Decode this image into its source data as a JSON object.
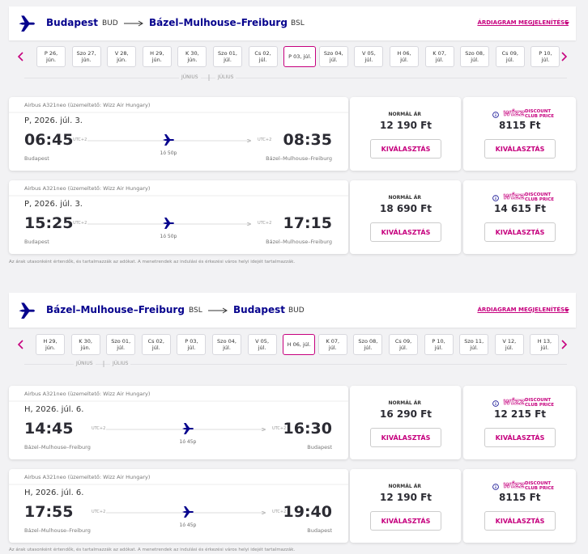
{
  "sections": [
    {
      "header": {
        "from": "Budapest",
        "from_code": "BUD",
        "to": "Bázel–Mulhouse–Freiburg",
        "to_code": "BSL",
        "chart_link": "ÁRDIAGRAM MEGJELENÍTÉSE"
      },
      "dates": [
        {
          "label": "P 26, jún."
        },
        {
          "label": "Szo 27, jún."
        },
        {
          "label": "V 28, jún."
        },
        {
          "label": "H 29, jún."
        },
        {
          "label": "K 30, jún."
        },
        {
          "label": "Szo 01, júl."
        },
        {
          "label": "Cs 02, júl."
        },
        {
          "label": "P 03, júl.",
          "selected": true
        },
        {
          "label": "Szo 04, júl."
        },
        {
          "label": "V 05, júl."
        },
        {
          "label": "H 06, júl."
        },
        {
          "label": "K 07, júl."
        },
        {
          "label": "Szo 08, júl."
        },
        {
          "label": "Cs 09, júl."
        },
        {
          "label": "P 10, júl."
        }
      ],
      "months": [
        "JÚNIUS",
        "JÚLIUS"
      ],
      "flights": [
        {
          "operator": "Airbus A321neo (üzemeltető: Wizz Air Hungary)",
          "date": "P, 2026. júl. 3.",
          "departure": "06:45",
          "departure_tz": "UTC+2",
          "arrival": "08:35",
          "arrival_tz": "UTC+2",
          "duration": "1ó 50p",
          "origin": "Budapest",
          "destination": "Bázel–Mulhouse–Freiburg",
          "fare_label": "NORMÁL ÁR",
          "fare": "12 190 Ft",
          "club_brand": "wizz",
          "club_label": [
            "DISCOUNT",
            "CLUB PRICE"
          ],
          "club_fare": "8115 Ft",
          "select": "KIVÁLASZTÁS"
        },
        {
          "operator": "Airbus A321neo (üzemeltető: Wizz Air Hungary)",
          "date": "P, 2026. júl. 3.",
          "departure": "15:25",
          "departure_tz": "UTC+2",
          "arrival": "17:15",
          "arrival_tz": "UTC+2",
          "duration": "1ó 50p",
          "origin": "Budapest",
          "destination": "Bázel–Mulhouse–Freiburg",
          "fare_label": "NORMÁL ÁR",
          "fare": "18 690 Ft",
          "club_brand": "wizz",
          "club_label": [
            "DISCOUNT",
            "CLUB PRICE"
          ],
          "club_fare": "14 615 Ft",
          "select": "KIVÁLASZTÁS"
        }
      ],
      "footnote": "Az árak utasonként értendők, és tartalmazzák az adókat. A menetrendek az indulási és érkezési város helyi idejét tartalmazzák."
    },
    {
      "header": {
        "from": "Bázel–Mulhouse–Freiburg",
        "from_code": "BSL",
        "to": "Budapest",
        "to_code": "BUD",
        "chart_link": "ÁRDIAGRAM MEGJELENÍTÉSE"
      },
      "dates": [
        {
          "label": "H 29, jún."
        },
        {
          "label": "K 30, jún."
        },
        {
          "label": "Szo 01, júl."
        },
        {
          "label": "Cs 02, júl."
        },
        {
          "label": "P 03, júl."
        },
        {
          "label": "Szo 04, júl."
        },
        {
          "label": "V 05, júl."
        },
        {
          "label": "H 06, júl.",
          "selected": true
        },
        {
          "label": "K 07, júl."
        },
        {
          "label": "Szo 08, júl."
        },
        {
          "label": "Cs 09, júl."
        },
        {
          "label": "P 10, júl."
        },
        {
          "label": "Szo 11, júl."
        },
        {
          "label": "V 12, júl."
        },
        {
          "label": "H 13, júl."
        }
      ],
      "months": [
        "JÚNIUS",
        "JÚLIUS"
      ],
      "flights": [
        {
          "operator": "Airbus A321neo (üzemeltető: Wizz Air Hungary)",
          "date": "H, 2026. júl. 6.",
          "departure": "14:45",
          "departure_tz": "UTC+2",
          "arrival": "16:30",
          "arrival_tz": "UTC+2",
          "duration": "1ó 45p",
          "origin": "Bázel–Mulhouse–Freiburg",
          "destination": "Budapest",
          "fare_label": "NORMÁL ÁR",
          "fare": "16 290 Ft",
          "club_brand": "wizz",
          "club_label": [
            "DISCOUNT",
            "CLUB PRICE"
          ],
          "club_fare": "12 215 Ft",
          "select": "KIVÁLASZTÁS"
        },
        {
          "operator": "Airbus A321neo (üzemeltető: Wizz Air Hungary)",
          "date": "H, 2026. júl. 6.",
          "departure": "17:55",
          "departure_tz": "UTC+2",
          "arrival": "19:40",
          "arrival_tz": "UTC+2",
          "duration": "1ó 45p",
          "origin": "Bázel–Mulhouse–Freiburg",
          "destination": "Budapest",
          "fare_label": "NORMÁL ÁR",
          "fare": "12 190 Ft",
          "club_brand": "wizz",
          "club_label": [
            "DISCOUNT",
            "CLUB PRICE"
          ],
          "club_fare": "8115 Ft",
          "select": "KIVÁLASZTÁS"
        }
      ],
      "footnote": "Az árak utasonként értendők, és tartalmazzák az adókat. A menetrendek az indulási és érkezési város helyi idejét tartalmazzák."
    }
  ]
}
